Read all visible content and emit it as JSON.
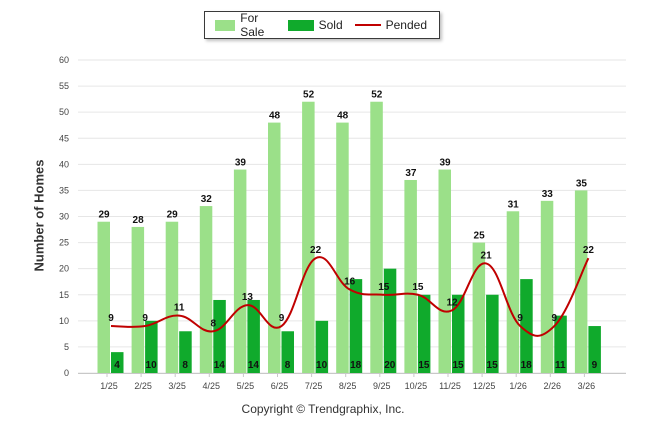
{
  "legend": {
    "for_sale": "For Sale",
    "sold": "Sold",
    "pended": "Pended"
  },
  "copyright": "Copyright © Trendgraphix, Inc.",
  "colors": {
    "for_sale": "#9be089",
    "sold": "#10aa2c",
    "pended": "#c00000",
    "grid": "#e6e6e6",
    "axis_text": "#444444"
  },
  "chart_data": {
    "type": "bar",
    "title": "",
    "xlabel": "",
    "ylabel": "Number of Homes",
    "ylim": [
      0,
      60
    ],
    "yticks": [
      0,
      5,
      10,
      15,
      20,
      25,
      30,
      35,
      40,
      45,
      50,
      55,
      60
    ],
    "grid": true,
    "legend_position": "top-center",
    "categories": [
      "1/25",
      "2/25",
      "3/25",
      "4/25",
      "5/25",
      "6/25",
      "7/25",
      "8/25",
      "9/25",
      "10/25",
      "11/25",
      "12/25",
      "1/26",
      "2/26",
      "3/26"
    ],
    "series": [
      {
        "name": "For Sale",
        "type": "bar",
        "values": [
          29,
          28,
          29,
          32,
          39,
          48,
          52,
          48,
          52,
          37,
          39,
          25,
          31,
          33,
          35
        ]
      },
      {
        "name": "Sold",
        "type": "bar",
        "values": [
          4,
          10,
          8,
          14,
          14,
          8,
          10,
          18,
          20,
          15,
          15,
          15,
          18,
          11,
          9
        ]
      },
      {
        "name": "Pended",
        "type": "line",
        "values": [
          9,
          9,
          11,
          8,
          13,
          9,
          22,
          16,
          15,
          15,
          12,
          21,
          9,
          9,
          22
        ]
      }
    ]
  }
}
